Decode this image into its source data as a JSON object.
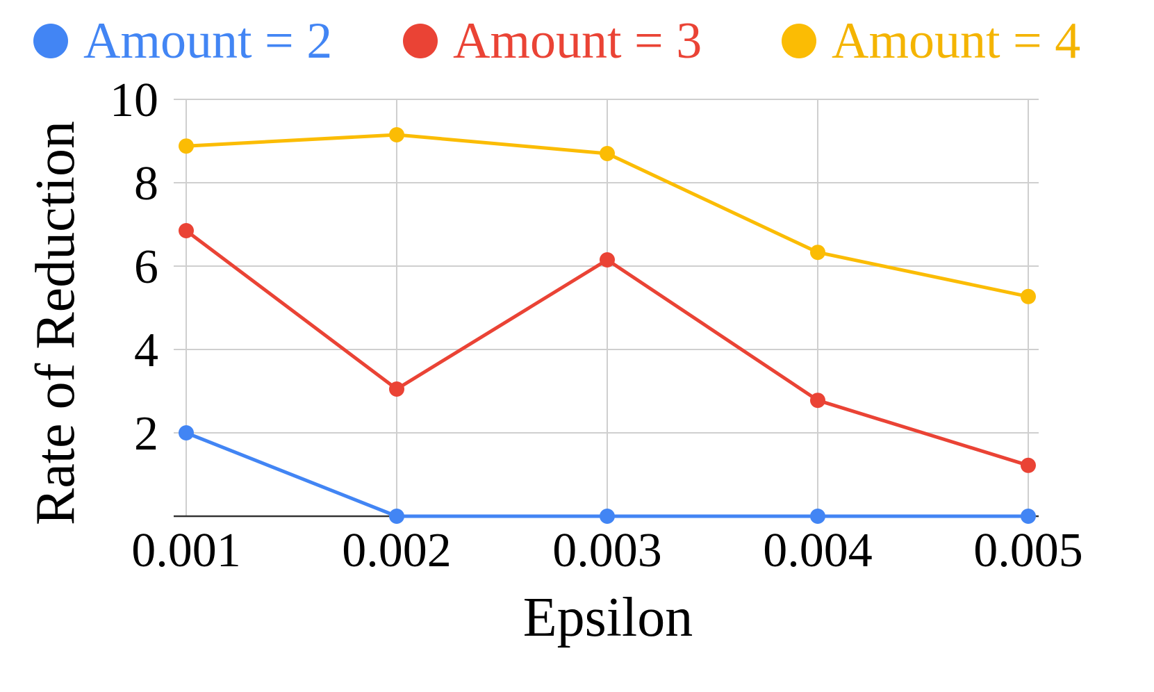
{
  "chart_data": {
    "type": "line",
    "title": "",
    "xlabel": "Epsilon",
    "ylabel": "Rate of Reduction",
    "categories": [
      "0.001",
      "0.002",
      "0.003",
      "0.004",
      "0.005"
    ],
    "ylim": [
      0,
      10
    ],
    "yticks": [
      "10",
      "8",
      "6",
      "4",
      "2"
    ],
    "ytick_values": [
      10,
      8,
      6,
      4,
      2
    ],
    "grid": true,
    "legend_position": "top",
    "series": [
      {
        "name": "Amount = 2",
        "color": "#4285F4",
        "values": [
          2.0,
          0.0,
          0.0,
          0.0,
          0.0
        ]
      },
      {
        "name": "Amount = 3",
        "color": "#EA4335",
        "values": [
          6.85,
          3.05,
          6.15,
          2.78,
          1.22
        ]
      },
      {
        "name": "Amount = 4",
        "color": "#FBBC04",
        "values": [
          8.88,
          9.15,
          8.7,
          6.33,
          5.27
        ]
      }
    ]
  }
}
